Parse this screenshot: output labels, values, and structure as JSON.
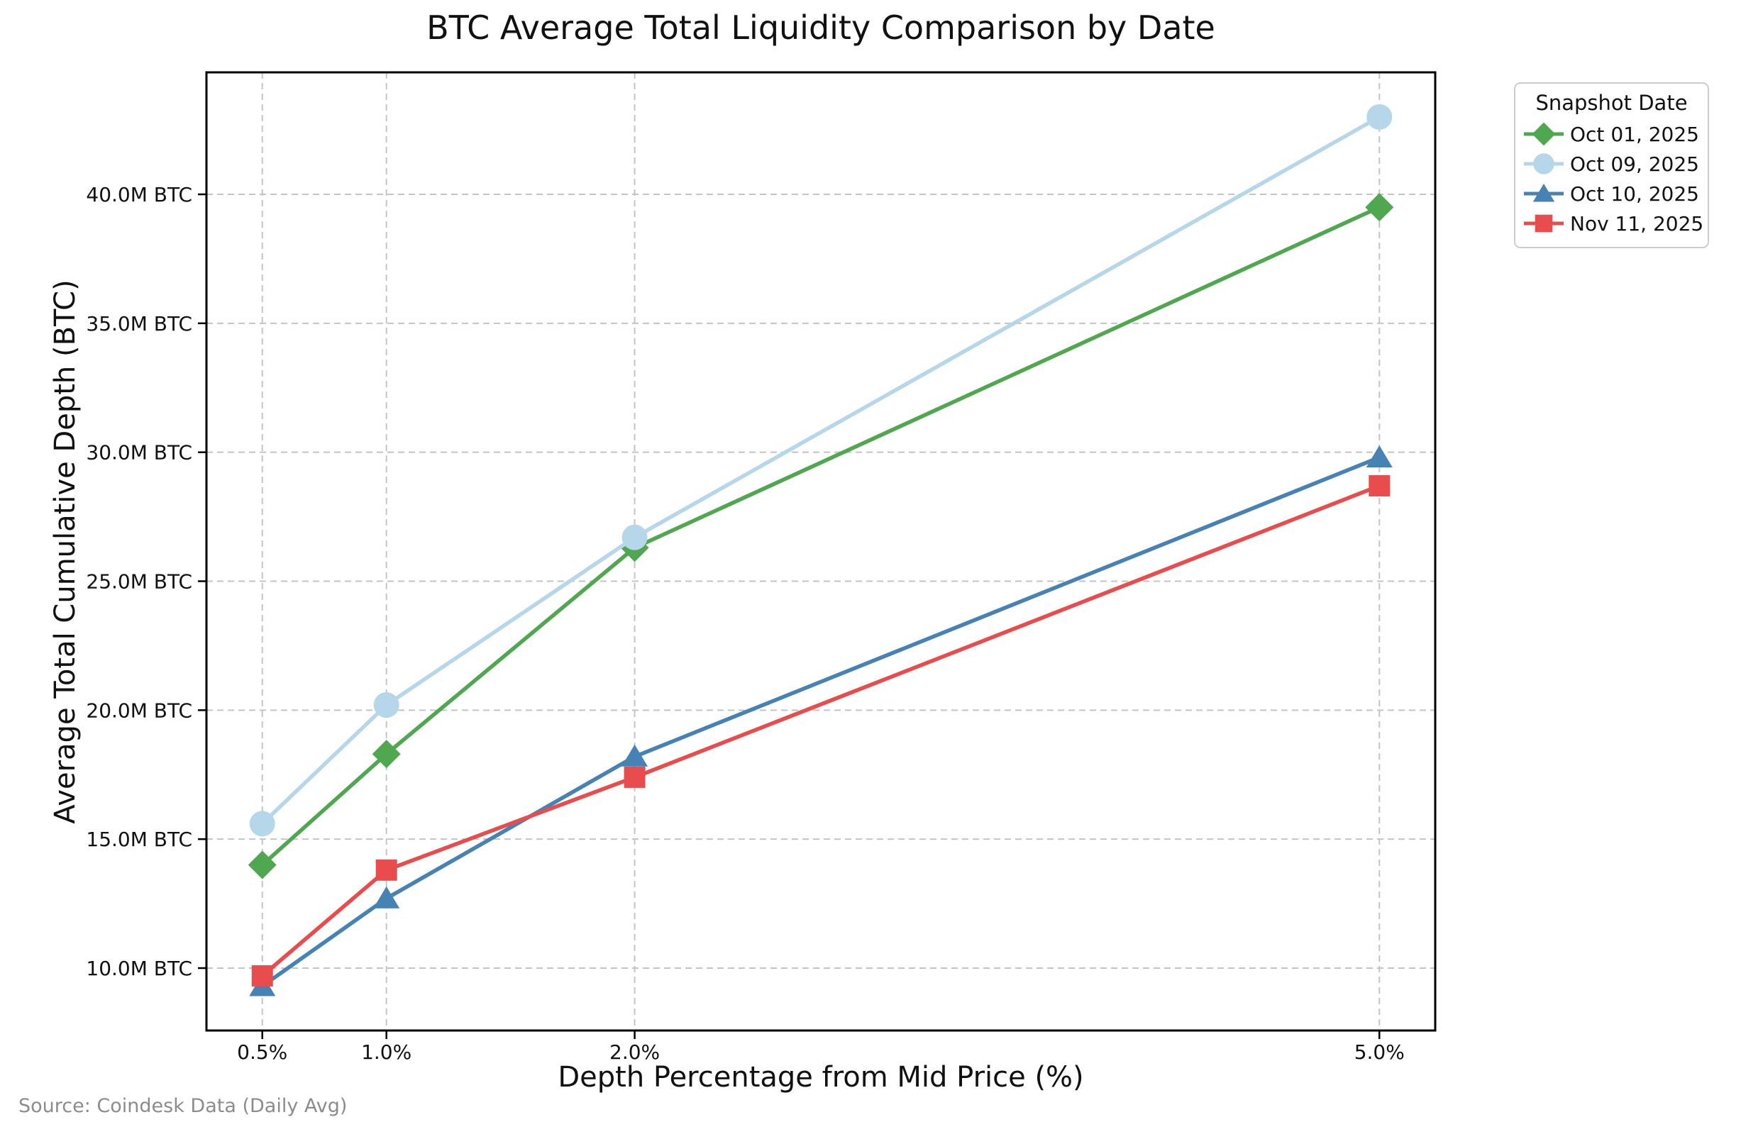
{
  "chart_data": {
    "type": "line",
    "title": "BTC Average Total Liquidity Comparison by Date",
    "xlabel": "Depth Percentage from Mid Price (%)",
    "ylabel": "Average Total Cumulative Depth (BTC)",
    "source_note": "Source: Coindesk Data (Daily Avg)",
    "legend_title": "Snapshot Date",
    "legend_position": "outside-top-right",
    "grid": true,
    "grid_color": "#c4c4c4",
    "spine_color": "#000000",
    "x": [
      0.5,
      1.0,
      2.0,
      5.0
    ],
    "x_tick_labels": [
      "0.5%",
      "1.0%",
      "2.0%",
      "5.0%"
    ],
    "y_ticks": [
      10,
      15,
      20,
      25,
      30,
      35,
      40
    ],
    "y_tick_labels": [
      "10.0M BTC",
      "15.0M BTC",
      "20.0M BTC",
      "25.0M BTC",
      "30.0M BTC",
      "35.0M BTC",
      "40.0M BTC"
    ],
    "xlim": [
      0.275,
      5.225
    ],
    "ylim": [
      7.58,
      44.73
    ],
    "y_unit": "M BTC",
    "series": [
      {
        "name": "Oct 01, 2025",
        "marker": "diamond",
        "color": "#4fa74f",
        "values": [
          14.0,
          18.3,
          26.3,
          39.5
        ]
      },
      {
        "name": "Oct 09, 2025",
        "marker": "circle",
        "color": "#b6d6e9",
        "values": [
          15.6,
          20.2,
          26.7,
          43.0
        ]
      },
      {
        "name": "Oct 10, 2025",
        "marker": "triangle-up",
        "color": "#4682b4",
        "values": [
          9.3,
          12.7,
          18.2,
          29.8
        ]
      },
      {
        "name": "Nov 11, 2025",
        "marker": "square",
        "color": "#e84c4c",
        "values": [
          9.7,
          13.8,
          17.4,
          28.7
        ]
      }
    ]
  }
}
